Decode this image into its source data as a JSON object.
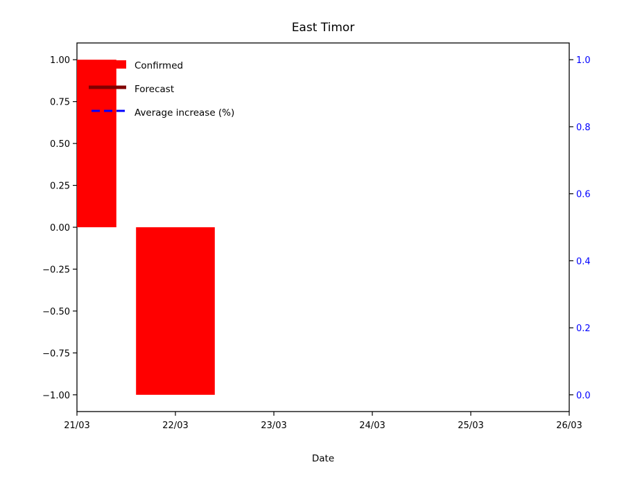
{
  "chart_data": {
    "type": "bar",
    "title": "East Timor",
    "xlabel": "Date",
    "ylabel": "",
    "x_ticks": [
      "21/03",
      "22/03",
      "23/03",
      "24/03",
      "25/03",
      "26/03"
    ],
    "ylim": [
      -1.1,
      1.1
    ],
    "y_ticks": [
      "1.00",
      "0.75",
      "0.50",
      "0.25",
      "0.00",
      "−0.25",
      "−0.50",
      "−0.75",
      "−1.00"
    ],
    "y_tick_values": [
      1.0,
      0.75,
      0.5,
      0.25,
      0.0,
      -0.25,
      -0.5,
      -0.75,
      -1.0
    ],
    "y2lim": [
      -0.05,
      1.05
    ],
    "y2_ticks": [
      "1.0",
      "0.8",
      "0.6",
      "0.4",
      "0.2",
      "0.0"
    ],
    "y2_tick_values": [
      1.0,
      0.8,
      0.6,
      0.4,
      0.2,
      0.0
    ],
    "grid": false,
    "legend_position": "top-left",
    "series": [
      {
        "name": "Confirmed",
        "kind": "bar",
        "color": "#ff0000",
        "points": [
          {
            "x": "21/03",
            "value": 1.0
          },
          {
            "x": "22/03",
            "value": -1.0
          }
        ]
      },
      {
        "name": "Forecast",
        "kind": "bar",
        "color": "#800000",
        "points": []
      },
      {
        "name": "Average increase (%)",
        "kind": "line",
        "style": "dashed",
        "axis": "right",
        "color": "#0000ff",
        "points": []
      }
    ]
  }
}
